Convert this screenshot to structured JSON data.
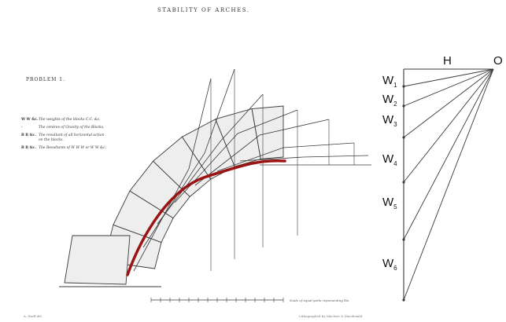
{
  "figure": {
    "title": "STABILITY OF ARCHES.",
    "problem": "PROBLEM 1.",
    "scale_text": "Scale of equal parts representing lbs.",
    "footer_left": "A. Stuff del.",
    "footer_right": "Lithographed by Maclure & Macdonald"
  },
  "legend": [
    {
      "key": "W W &c.",
      "text": "The weights of the blocks C.C. &c."
    },
    {
      "key": "·",
      "text": "The centres of Gravity of the Blocks."
    },
    {
      "key": "R R &c.",
      "text": "The resultant of all horizontal action on the blocks."
    },
    {
      "key": "R R &c.",
      "text": "The Resultants of W W W or W W &c."
    }
  ],
  "force_polygon": {
    "pole_label": "O",
    "horizontal_label": "H",
    "weights": [
      {
        "main": "W",
        "sub": "1"
      },
      {
        "main": "W",
        "sub": "2"
      },
      {
        "main": "W",
        "sub": "3"
      },
      {
        "main": "W",
        "sub": "4"
      },
      {
        "main": "W",
        "sub": "5"
      },
      {
        "main": "W",
        "sub": "6"
      }
    ]
  },
  "colors": {
    "line": "#3a3a3a",
    "voussoir_fill": "#eeeeee",
    "thrust_line": "#9b1414"
  }
}
